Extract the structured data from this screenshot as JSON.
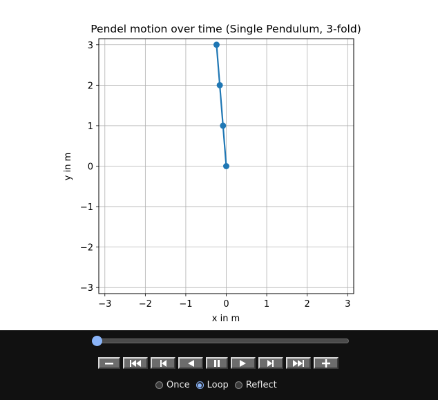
{
  "chart_data": {
    "type": "line",
    "title": "Pendel motion over time (Single Pendulum, 3-fold)",
    "xlabel": "x in m",
    "ylabel": "y in m",
    "xlim": [
      -3.15,
      3.15
    ],
    "ylim": [
      -3.15,
      3.15
    ],
    "xticks": [
      -3,
      -2,
      -1,
      0,
      1,
      2,
      3
    ],
    "yticks": [
      -3,
      -2,
      -1,
      0,
      1,
      2,
      3
    ],
    "xtick_labels": [
      "−3",
      "−2",
      "−1",
      "0",
      "1",
      "2",
      "3"
    ],
    "ytick_labels": [
      "−3",
      "−2",
      "−1",
      "0",
      "1",
      "2",
      "3"
    ],
    "grid": true,
    "series": [
      {
        "x": [
          0.0,
          -0.08,
          -0.16,
          -0.24
        ],
        "y": [
          0.0,
          1.0,
          2.0,
          3.0
        ],
        "color": "#1f77b4",
        "marker": "circle"
      }
    ]
  },
  "controls": {
    "slider": {
      "min": 0,
      "max": 100,
      "value": 0
    },
    "buttons": [
      {
        "name": "decrease-speed-button",
        "icon": "minus-icon"
      },
      {
        "name": "first-frame-button",
        "icon": "skip-to-start-icon"
      },
      {
        "name": "previous-frame-button",
        "icon": "step-back-icon"
      },
      {
        "name": "play-reverse-button",
        "icon": "play-reverse-icon"
      },
      {
        "name": "pause-button",
        "icon": "pause-icon"
      },
      {
        "name": "play-button",
        "icon": "play-icon"
      },
      {
        "name": "next-frame-button",
        "icon": "step-forward-icon"
      },
      {
        "name": "last-frame-button",
        "icon": "skip-to-end-icon"
      },
      {
        "name": "increase-speed-button",
        "icon": "plus-icon"
      }
    ],
    "loop_options": [
      {
        "label": "Once",
        "checked": false
      },
      {
        "label": "Loop",
        "checked": true
      },
      {
        "label": "Reflect",
        "checked": false
      }
    ],
    "accent_color": "#8ab4f8",
    "background_color": "#111111"
  }
}
